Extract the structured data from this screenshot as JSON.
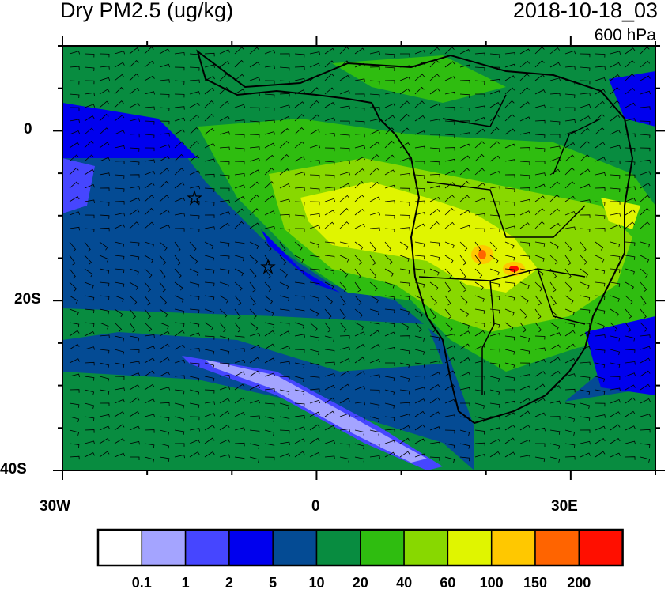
{
  "title": "Dry PM2.5 (ug/kg)",
  "datetime": "2018-10-18_03",
  "level": "600 hPa",
  "map": {
    "lon_range": [
      -30,
      40
    ],
    "lat_range": [
      -40,
      10
    ],
    "x_tick_labels": [
      "30W",
      "0",
      "30E"
    ],
    "y_tick_labels": [
      "0",
      "20S",
      "40S"
    ],
    "markers": [
      {
        "type": "star",
        "lon": -14.5,
        "lat": -8
      },
      {
        "type": "star",
        "lon": -5.7,
        "lat": -16
      }
    ],
    "overlay": "wind-barbs"
  },
  "colorbar": {
    "levels": [
      "0.1",
      "1",
      "2",
      "5",
      "10",
      "20",
      "40",
      "60",
      "100",
      "150",
      "200"
    ],
    "colors": [
      "#ffffff",
      "#a4a4ff",
      "#4646ff",
      "#0000ee",
      "#044b94",
      "#088c40",
      "#2fbd10",
      "#88d800",
      "#e0f500",
      "#ffc800",
      "#ff6400",
      "#ff0f00"
    ]
  }
}
